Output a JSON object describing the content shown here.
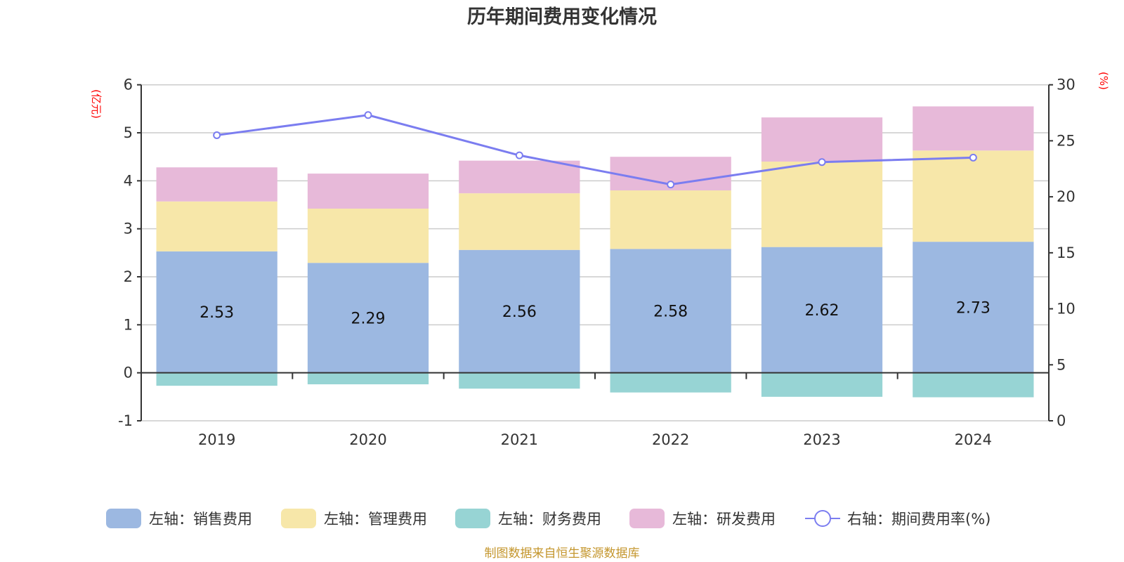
{
  "chart_data": {
    "type": "bar",
    "subtype": "stacked-bar-with-line",
    "title": "历年期间费用变化情况",
    "categories": [
      "2019",
      "2020",
      "2021",
      "2022",
      "2023",
      "2024"
    ],
    "left_axis": {
      "unit_label": "(亿元)",
      "ylim": [
        -1,
        6
      ],
      "ticks": [
        "6",
        "5",
        "4",
        "3",
        "2",
        "1",
        "0",
        "-1"
      ],
      "tick_values": [
        6,
        5,
        4,
        3,
        2,
        1,
        0,
        -1
      ]
    },
    "right_axis": {
      "unit_label": "(%)",
      "ylim": [
        0,
        30
      ],
      "ticks": [
        "30",
        "25",
        "20",
        "15",
        "10",
        "5",
        "0"
      ],
      "tick_values": [
        30,
        25,
        20,
        15,
        10,
        5,
        0
      ]
    },
    "grid": true,
    "legend_position": "bottom",
    "series": [
      {
        "name": "左轴：销售费用",
        "axis": "left",
        "type": "bar",
        "color": "#9cb8e1",
        "values": [
          2.53,
          2.29,
          2.56,
          2.58,
          2.62,
          2.73
        ],
        "labels": [
          "2.53",
          "2.29",
          "2.56",
          "2.58",
          "2.62",
          "2.73"
        ]
      },
      {
        "name": "左轴：管理费用",
        "axis": "left",
        "type": "bar",
        "color": "#f7e7a9",
        "values": [
          1.04,
          1.13,
          1.18,
          1.22,
          1.78,
          1.9
        ]
      },
      {
        "name": "左轴：财务费用",
        "axis": "left",
        "type": "bar",
        "color": "#97d4d4",
        "values": [
          -0.27,
          -0.24,
          -0.33,
          -0.41,
          -0.5,
          -0.51
        ]
      },
      {
        "name": "左轴：研发费用",
        "axis": "left",
        "type": "bar",
        "color": "#e7b9d9",
        "values": [
          0.71,
          0.73,
          0.68,
          0.7,
          0.92,
          0.92
        ]
      },
      {
        "name": "右轴：期间费用率(%)",
        "axis": "right",
        "type": "line",
        "color": "#7b7df0",
        "values": [
          25.5,
          27.3,
          23.7,
          21.1,
          23.1,
          23.5
        ]
      }
    ],
    "footer": "制图数据来自恒生聚源数据库"
  }
}
